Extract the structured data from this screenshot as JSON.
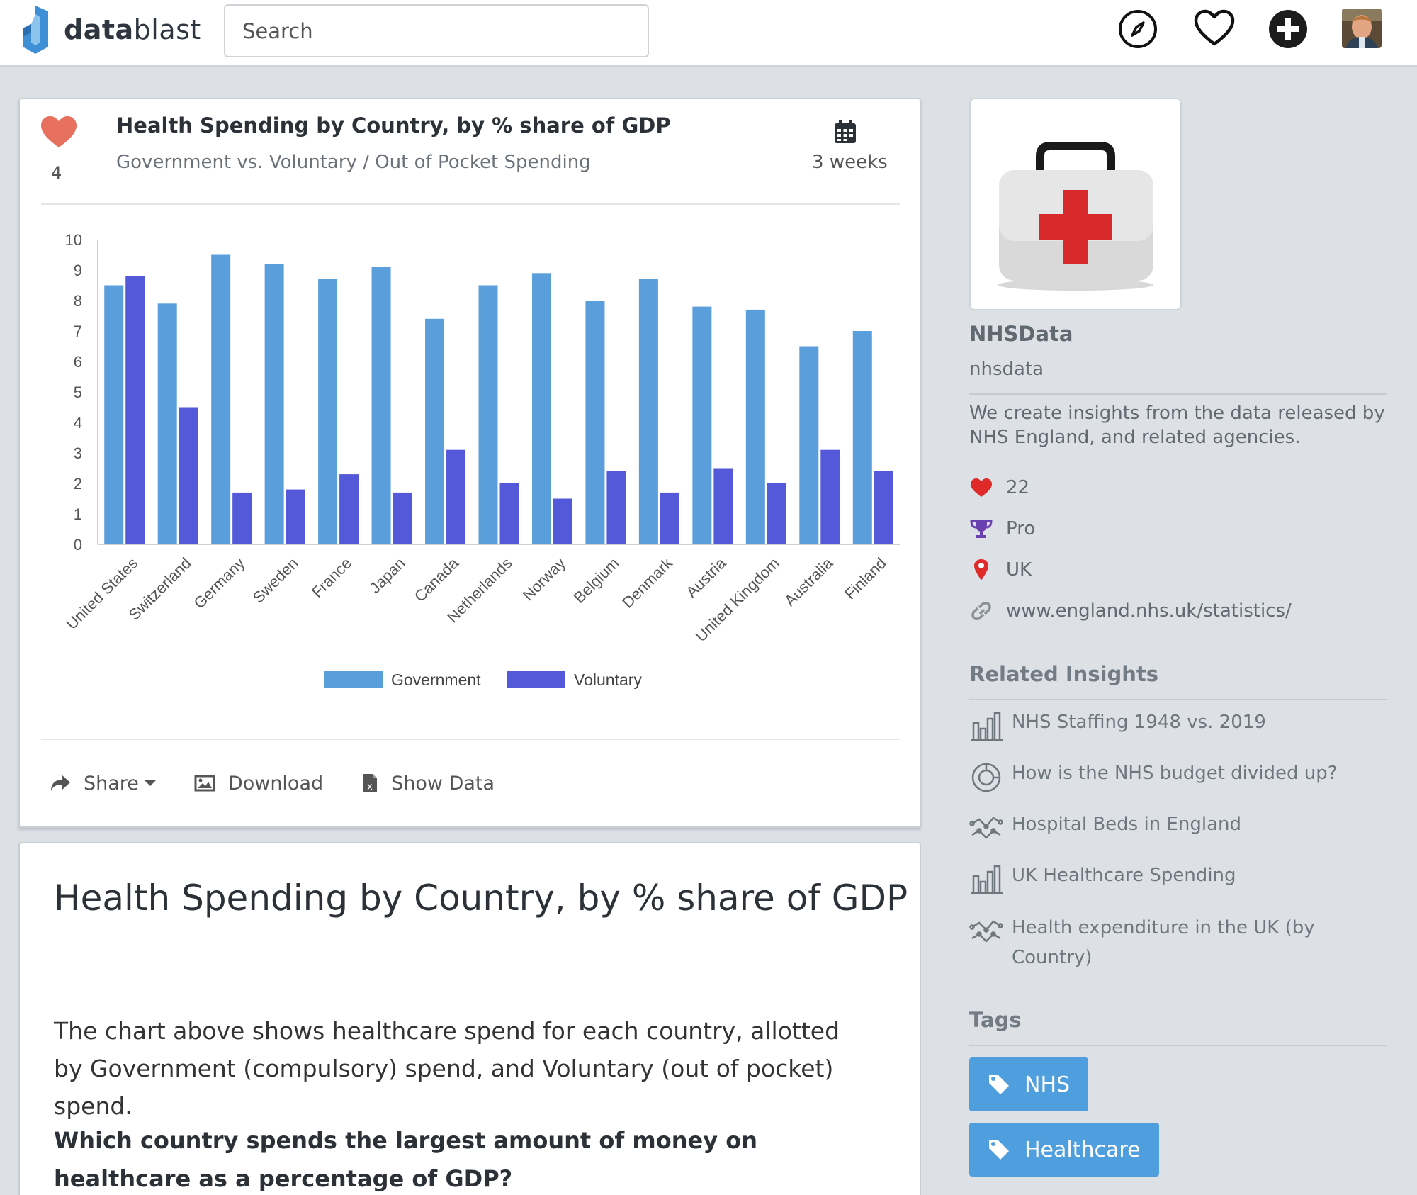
{
  "header": {
    "brand_prefix": "data",
    "brand_suffix": "blast",
    "search_placeholder": "Search",
    "icons": [
      "compass-icon",
      "heart-icon",
      "plus-circle-icon",
      "avatar"
    ]
  },
  "insight": {
    "likes": "4",
    "title": "Health Spending by Country, by % share of GDP",
    "subtitle": "Government vs. Voluntary / Out of Pocket Spending",
    "age": "3 weeks",
    "actions": {
      "share": "Share",
      "download": "Download",
      "show_data": "Show Data"
    }
  },
  "chart_data": {
    "type": "bar",
    "title": "",
    "xlabel": "",
    "ylabel": "",
    "ylim": [
      0,
      10
    ],
    "yticks": [
      0,
      1,
      2,
      3,
      4,
      5,
      6,
      7,
      8,
      9,
      10
    ],
    "categories": [
      "United States",
      "Switzerland",
      "Germany",
      "Sweden",
      "France",
      "Japan",
      "Canada",
      "Netherlands",
      "Norway",
      "Belgium",
      "Denmark",
      "Austria",
      "United Kingdom",
      "Australia",
      "Finland"
    ],
    "series": [
      {
        "name": "Government",
        "color": "#5b9edc",
        "values": [
          8.5,
          7.9,
          9.5,
          9.2,
          8.7,
          9.1,
          7.4,
          8.5,
          8.9,
          8.0,
          8.7,
          7.8,
          7.7,
          6.5,
          7.0
        ]
      },
      {
        "name": "Voluntary",
        "color": "#5359d9",
        "values": [
          8.8,
          4.5,
          1.7,
          1.8,
          2.3,
          1.7,
          3.1,
          2.0,
          1.5,
          2.4,
          1.7,
          2.5,
          2.0,
          3.1,
          2.4
        ]
      }
    ],
    "legend": "bottom-center"
  },
  "description": {
    "title": "Health Spending by Country, by % share of GDP",
    "text": "The chart above shows healthcare spend for each country, allotted by Government (compulsory) spend, and Voluntary (out of pocket) spend.",
    "question": "Which country spends the largest amount of money on healthcare as a percentage of GDP?"
  },
  "profile": {
    "name": "NHSData",
    "handle": "nhsdata",
    "bio": "We create insights from the data released by NHS England, and related agencies.",
    "likes": "22",
    "plan": "Pro",
    "location": "UK",
    "website": "www.england.nhs.uk/statistics/"
  },
  "related": {
    "heading": "Related Insights",
    "items": [
      {
        "label": "NHS Staffing 1948 vs. 2019",
        "icon": "bar-chart-icon"
      },
      {
        "label": "How is the NHS budget divided up?",
        "icon": "pie-chart-icon"
      },
      {
        "label": "Hospital Beds in England",
        "icon": "line-chart-icon"
      },
      {
        "label": "UK Healthcare Spending",
        "icon": "bar-chart-icon"
      },
      {
        "label": "Health expenditure in the UK (by Country)",
        "icon": "line-chart-icon"
      }
    ]
  },
  "tags": {
    "heading": "Tags",
    "items": [
      "NHS",
      "Healthcare"
    ]
  },
  "colors": {
    "accent": "#4f9ede",
    "heart": "#e8705f",
    "government": "#5b9edc",
    "voluntary": "#5359d9"
  }
}
